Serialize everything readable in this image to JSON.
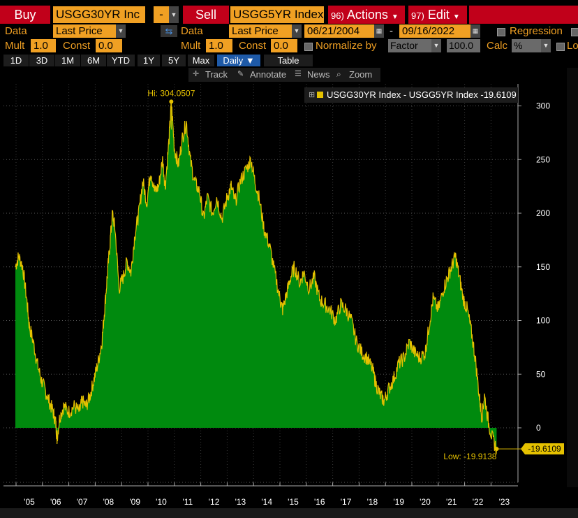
{
  "toolbar_row": {
    "buy_label": "Buy",
    "buy_ticker": "USGG30YR Inc",
    "op": "-",
    "sell_label": "Sell",
    "sell_ticker": "USGG5YR Index",
    "actions_num": "96)",
    "actions_label": "Actions",
    "edit_num": "97)",
    "edit_label": "Edit"
  },
  "data_row": {
    "data_label_1": "Data",
    "field_1": "Last Price",
    "data_label_2": "Data",
    "field_2": "Last Price",
    "start_date": "06/21/2004",
    "dash": "-",
    "end_date": "09/16/2022",
    "regression_label": "Regression"
  },
  "mult_row": {
    "mult_label_1": "Mult",
    "mult_1": "1.0",
    "const_label_1": "Const",
    "const_1": "0.0",
    "mult_label_2": "Mult",
    "mult_2": "1.0",
    "const_label_2": "Const",
    "const_2": "0.0",
    "normalize_label": "Normalize by",
    "normalize_value": "Factor",
    "factor_value": "100.0",
    "calc_label": "Calc",
    "calc_value": "%",
    "local_label": "Loca"
  },
  "tabs": [
    {
      "label": "1D"
    },
    {
      "label": "3D"
    },
    {
      "label": "1M"
    },
    {
      "label": "6M"
    },
    {
      "label": "YTD"
    },
    {
      "label": "1Y"
    },
    {
      "label": "5Y"
    },
    {
      "label": "Max"
    },
    {
      "label": "Daily ▼"
    },
    {
      "label": "Table"
    }
  ],
  "tools": {
    "track": "Track",
    "annotate": "Annotate",
    "news": "News",
    "zoom": "Zoom"
  },
  "colors": {
    "fill": "#008a0e",
    "line": "#e5c100",
    "grid": "#5a5a5a"
  },
  "chart_data": {
    "type": "area",
    "legend": "USGG30YR Index - USGG5YR Index -19.6109",
    "last_value_label": "-19.6109",
    "hi_label": "Hi: 304.0507",
    "low_label": "Low: -19.9138",
    "ylim": [
      -50,
      320
    ],
    "yticks": [
      0,
      50,
      100,
      150,
      200,
      250,
      300
    ],
    "xticks": [
      "'05",
      "'06",
      "'07",
      "'08",
      "'09",
      "'10",
      "'11",
      "'12",
      "'13",
      "'14",
      "'15",
      "'16",
      "'17",
      "'18",
      "'19",
      "'20",
      "'21",
      "'22",
      "'23"
    ],
    "x_start": 2004.47,
    "x_end": 2022.71,
    "points": [
      [
        2004.47,
        150
      ],
      [
        2004.6,
        160
      ],
      [
        2004.75,
        150
      ],
      [
        2004.9,
        120
      ],
      [
        2005.0,
        95
      ],
      [
        2005.15,
        80
      ],
      [
        2005.3,
        60
      ],
      [
        2005.45,
        45
      ],
      [
        2005.6,
        35
      ],
      [
        2005.75,
        25
      ],
      [
        2005.9,
        15
      ],
      [
        2006.0,
        5
      ],
      [
        2006.05,
        -10
      ],
      [
        2006.15,
        10
      ],
      [
        2006.3,
        20
      ],
      [
        2006.5,
        15
      ],
      [
        2006.7,
        20
      ],
      [
        2006.9,
        15
      ],
      [
        2007.0,
        25
      ],
      [
        2007.15,
        20
      ],
      [
        2007.3,
        30
      ],
      [
        2007.45,
        45
      ],
      [
        2007.6,
        60
      ],
      [
        2007.75,
        80
      ],
      [
        2007.85,
        110
      ],
      [
        2007.95,
        140
      ],
      [
        2008.05,
        170
      ],
      [
        2008.15,
        200
      ],
      [
        2008.25,
        185
      ],
      [
        2008.4,
        130
      ],
      [
        2008.55,
        140
      ],
      [
        2008.7,
        155
      ],
      [
        2008.85,
        145
      ],
      [
        2009.0,
        180
      ],
      [
        2009.15,
        200
      ],
      [
        2009.3,
        230
      ],
      [
        2009.45,
        210
      ],
      [
        2009.6,
        240
      ],
      [
        2009.75,
        220
      ],
      [
        2009.9,
        225
      ],
      [
        2010.05,
        250
      ],
      [
        2010.15,
        225
      ],
      [
        2010.3,
        270
      ],
      [
        2010.38,
        304
      ],
      [
        2010.5,
        260
      ],
      [
        2010.65,
        245
      ],
      [
        2010.8,
        270
      ],
      [
        2010.95,
        285
      ],
      [
        2011.1,
        250
      ],
      [
        2011.25,
        230
      ],
      [
        2011.45,
        220
      ],
      [
        2011.6,
        195
      ],
      [
        2011.75,
        215
      ],
      [
        2011.95,
        200
      ],
      [
        2012.1,
        215
      ],
      [
        2012.3,
        195
      ],
      [
        2012.5,
        215
      ],
      [
        2012.65,
        225
      ],
      [
        2012.8,
        210
      ],
      [
        2013.0,
        230
      ],
      [
        2013.2,
        240
      ],
      [
        2013.4,
        250
      ],
      [
        2013.55,
        230
      ],
      [
        2013.7,
        215
      ],
      [
        2013.9,
        185
      ],
      [
        2014.1,
        170
      ],
      [
        2014.3,
        145
      ],
      [
        2014.5,
        120
      ],
      [
        2014.6,
        110
      ],
      [
        2014.75,
        125
      ],
      [
        2014.9,
        140
      ],
      [
        2015.05,
        150
      ],
      [
        2015.25,
        135
      ],
      [
        2015.4,
        145
      ],
      [
        2015.6,
        130
      ],
      [
        2015.8,
        140
      ],
      [
        2016.0,
        120
      ],
      [
        2016.2,
        115
      ],
      [
        2016.4,
        110
      ],
      [
        2016.6,
        100
      ],
      [
        2016.8,
        115
      ],
      [
        2017.0,
        110
      ],
      [
        2017.2,
        100
      ],
      [
        2017.4,
        80
      ],
      [
        2017.6,
        70
      ],
      [
        2017.8,
        65
      ],
      [
        2018.0,
        55
      ],
      [
        2018.15,
        40
      ],
      [
        2018.3,
        30
      ],
      [
        2018.45,
        25
      ],
      [
        2018.6,
        35
      ],
      [
        2018.8,
        45
      ],
      [
        2019.0,
        60
      ],
      [
        2019.2,
        65
      ],
      [
        2019.4,
        80
      ],
      [
        2019.6,
        70
      ],
      [
        2019.8,
        65
      ],
      [
        2020.0,
        70
      ],
      [
        2020.15,
        95
      ],
      [
        2020.3,
        120
      ],
      [
        2020.5,
        110
      ],
      [
        2020.7,
        130
      ],
      [
        2020.85,
        140
      ],
      [
        2021.0,
        150
      ],
      [
        2021.15,
        160
      ],
      [
        2021.3,
        140
      ],
      [
        2021.45,
        120
      ],
      [
        2021.6,
        110
      ],
      [
        2021.75,
        90
      ],
      [
        2021.9,
        65
      ],
      [
        2022.05,
        30
      ],
      [
        2022.15,
        10
      ],
      [
        2022.25,
        30
      ],
      [
        2022.4,
        5
      ],
      [
        2022.55,
        -10
      ],
      [
        2022.71,
        -19.61
      ]
    ]
  }
}
